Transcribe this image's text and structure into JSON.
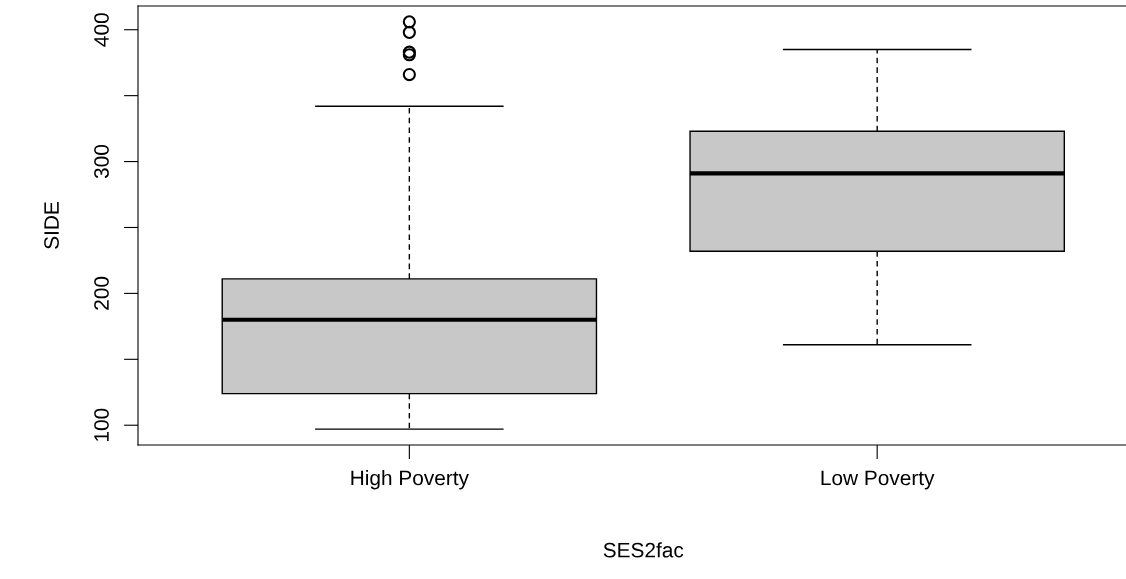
{
  "chart_data": {
    "type": "box",
    "xlabel": "SES2fac",
    "ylabel": "SIDE",
    "categories": [
      "High Poverty",
      "Low Poverty"
    ],
    "boxes": [
      {
        "low": 97,
        "q1": 124,
        "median": 180,
        "q3": 211,
        "high": 342,
        "outliers": [
          406,
          398,
          383,
          381,
          366
        ]
      },
      {
        "low": 161,
        "q1": 232,
        "median": 291,
        "q3": 323,
        "high": 385
      }
    ],
    "color": "#c8c8c8",
    "ylim": [
      85,
      418
    ],
    "yticks": [
      100,
      {
        "value": 150,
        "label": null
      },
      200,
      {
        "value": 250,
        "label": null
      },
      300,
      {
        "value": 350,
        "label": null
      },
      400
    ],
    "grid": false
  }
}
